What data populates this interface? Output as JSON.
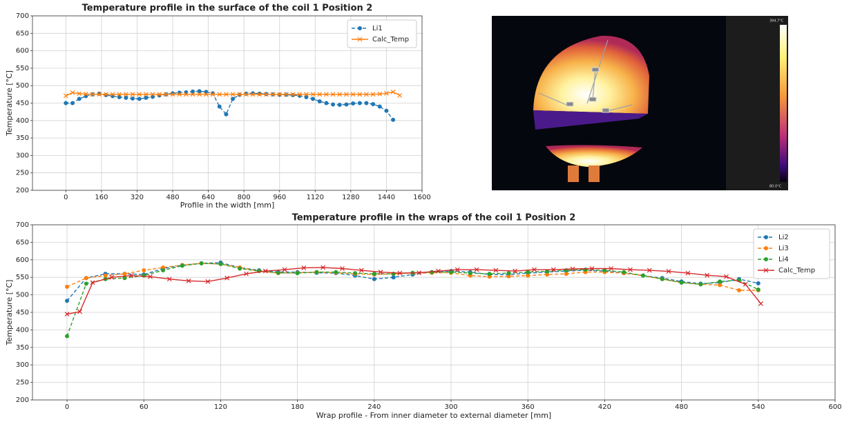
{
  "chart_data": [
    {
      "type": "line",
      "title": "Temperature profile in the surface of the coil 1 Position 2",
      "x_label": "Profile in the width [mm]",
      "y_label": "Temperature [°C]",
      "xlim": [
        -150,
        1600
      ],
      "ylim": [
        200,
        700
      ],
      "xticks": [
        0,
        160,
        320,
        480,
        640,
        800,
        960,
        1120,
        1280,
        1440,
        1600
      ],
      "yticks": [
        200,
        250,
        300,
        350,
        400,
        450,
        500,
        550,
        600,
        650,
        700
      ],
      "grid": true,
      "legend": "upper right",
      "series": [
        {
          "name": "Li1",
          "color": "#1f77b4",
          "marker": "o",
          "linestyle": "dashed",
          "x": [
            0,
            30,
            60,
            90,
            120,
            150,
            180,
            210,
            240,
            270,
            300,
            330,
            360,
            390,
            420,
            450,
            480,
            510,
            540,
            570,
            600,
            630,
            660,
            690,
            720,
            750,
            780,
            810,
            840,
            870,
            900,
            930,
            960,
            990,
            1020,
            1050,
            1080,
            1110,
            1140,
            1170,
            1200,
            1230,
            1260,
            1290,
            1320,
            1350,
            1380,
            1410,
            1440,
            1470
          ],
          "values": [
            450,
            450,
            462,
            470,
            475,
            477,
            473,
            470,
            467,
            465,
            463,
            462,
            465,
            468,
            472,
            475,
            478,
            480,
            481,
            483,
            484,
            482,
            478,
            440,
            418,
            462,
            474,
            477,
            478,
            477,
            476,
            475,
            474,
            474,
            473,
            471,
            467,
            462,
            455,
            450,
            446,
            445,
            446,
            449,
            450,
            450,
            447,
            440,
            428,
            402
          ]
        },
        {
          "name": "Calc_Temp",
          "color": "#ff7f0e",
          "marker": "x",
          "linestyle": "solid",
          "x": [
            0,
            30,
            60,
            90,
            120,
            150,
            180,
            210,
            240,
            270,
            300,
            330,
            360,
            390,
            420,
            450,
            480,
            510,
            540,
            570,
            600,
            630,
            660,
            690,
            720,
            750,
            780,
            810,
            840,
            870,
            900,
            930,
            960,
            990,
            1020,
            1050,
            1080,
            1110,
            1140,
            1170,
            1200,
            1230,
            1260,
            1290,
            1320,
            1350,
            1380,
            1410,
            1440,
            1470,
            1500
          ],
          "values": [
            471,
            480,
            477,
            476,
            475,
            475,
            475,
            475,
            475,
            475,
            475,
            475,
            475,
            475,
            475,
            475,
            475,
            475,
            475,
            475,
            475,
            475,
            475,
            475,
            475,
            475,
            475,
            475,
            475,
            475,
            475,
            475,
            475,
            475,
            475,
            475,
            475,
            475,
            475,
            475,
            475,
            475,
            475,
            475,
            475,
            475,
            475,
            476,
            478,
            482,
            472
          ]
        }
      ]
    },
    {
      "type": "line",
      "title": "Temperature profile in the wraps of the coil 1 Position 2",
      "x_label": "Wrap profile - From inner diameter to external diameter [mm]",
      "y_label": "Temperature [°C]",
      "xlim": [
        -27,
        600
      ],
      "ylim": [
        200,
        700
      ],
      "xticks": [
        0,
        60,
        120,
        180,
        240,
        300,
        360,
        420,
        480,
        540,
        600
      ],
      "yticks": [
        200,
        250,
        300,
        350,
        400,
        450,
        500,
        550,
        600,
        650,
        700
      ],
      "grid": true,
      "legend": "upper right",
      "x": [
        0,
        15,
        30,
        45,
        60,
        75,
        90,
        105,
        120,
        135,
        150,
        165,
        180,
        195,
        210,
        225,
        240,
        255,
        270,
        285,
        300,
        315,
        330,
        345,
        360,
        375,
        390,
        405,
        420,
        435,
        450,
        465,
        480,
        495,
        510,
        525,
        540
      ],
      "series": [
        {
          "name": "Li2",
          "color": "#1f77b4",
          "marker": "o",
          "linestyle": "dashed",
          "values": [
            483,
            548,
            560,
            560,
            558,
            575,
            585,
            590,
            592,
            578,
            570,
            565,
            565,
            563,
            562,
            555,
            545,
            550,
            558,
            565,
            568,
            565,
            558,
            558,
            562,
            565,
            568,
            570,
            568,
            562,
            555,
            548,
            538,
            532,
            535,
            545,
            533
          ]
        },
        {
          "name": "Li3",
          "color": "#ff7f0e",
          "marker": "o",
          "linestyle": "dashed",
          "values": [
            523,
            548,
            555,
            560,
            570,
            578,
            585,
            590,
            588,
            578,
            568,
            562,
            563,
            565,
            563,
            560,
            558,
            560,
            562,
            563,
            563,
            555,
            552,
            553,
            555,
            558,
            560,
            565,
            565,
            562,
            555,
            545,
            535,
            530,
            528,
            513,
            513
          ]
        },
        {
          "name": "Li4",
          "color": "#2ca02c",
          "marker": "o",
          "linestyle": "dashed",
          "values": [
            382,
            532,
            545,
            548,
            555,
            570,
            583,
            590,
            588,
            575,
            568,
            563,
            562,
            565,
            565,
            562,
            560,
            560,
            563,
            565,
            565,
            562,
            560,
            562,
            565,
            567,
            570,
            572,
            570,
            565,
            555,
            545,
            535,
            530,
            538,
            542,
            515
          ]
        },
        {
          "name": "Calc_Temp",
          "color": "#d62728",
          "marker": "x",
          "linestyle": "solid",
          "x": [
            0,
            10,
            20,
            35,
            50,
            65,
            80,
            95,
            110,
            125,
            140,
            155,
            170,
            185,
            200,
            215,
            230,
            245,
            260,
            275,
            290,
            305,
            320,
            335,
            350,
            365,
            380,
            395,
            410,
            425,
            440,
            455,
            470,
            485,
            500,
            515,
            530,
            542
          ],
          "values": [
            445,
            452,
            535,
            550,
            555,
            552,
            545,
            540,
            538,
            548,
            560,
            568,
            572,
            577,
            578,
            575,
            570,
            565,
            562,
            563,
            568,
            572,
            572,
            570,
            568,
            572,
            572,
            574,
            575,
            575,
            572,
            570,
            567,
            562,
            556,
            552,
            530,
            475
          ]
        }
      ]
    }
  ],
  "thermal_image": {
    "scale_max": "394.7°C",
    "scale_min": "80.0°C"
  }
}
